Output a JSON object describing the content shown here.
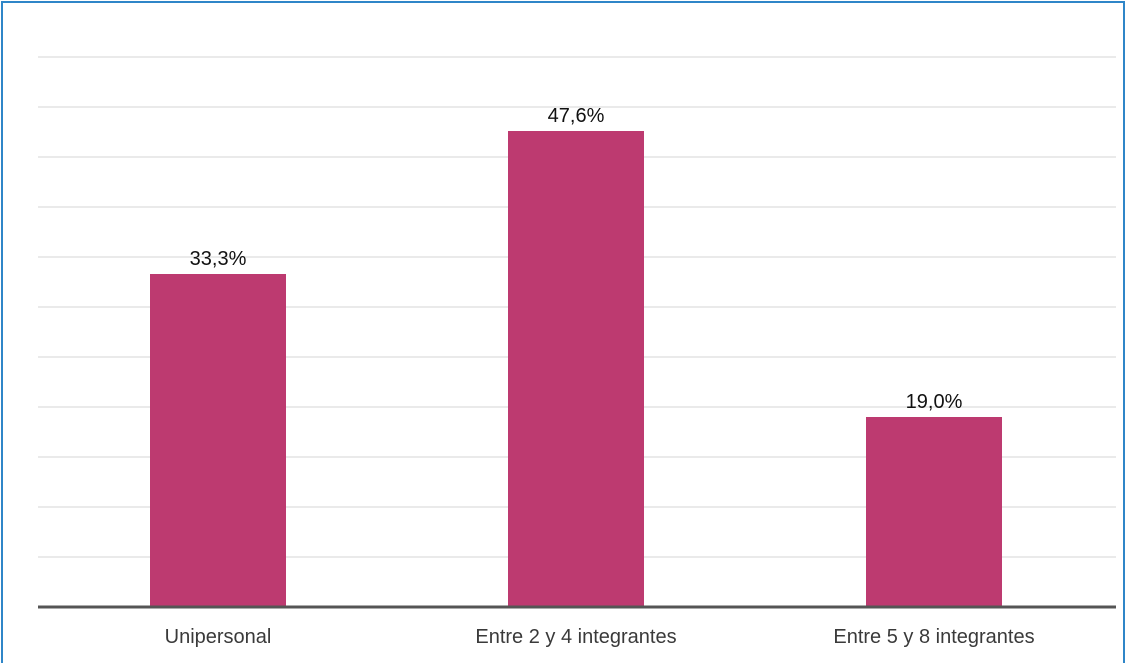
{
  "chart_data": {
    "type": "bar",
    "categories": [
      "Unipersonal",
      "Entre 2 y 4 integrantes",
      "Entre 5 y 8 integrantes"
    ],
    "values": [
      33.3,
      47.6,
      19.0
    ],
    "data_labels": [
      "33,3%",
      "47,6%",
      "19,0%"
    ],
    "ylim": [
      0,
      55
    ],
    "grid": true,
    "bar_color": "#bd3a70",
    "axis_color": "#555555",
    "grid_color": "#e3e3e3"
  }
}
